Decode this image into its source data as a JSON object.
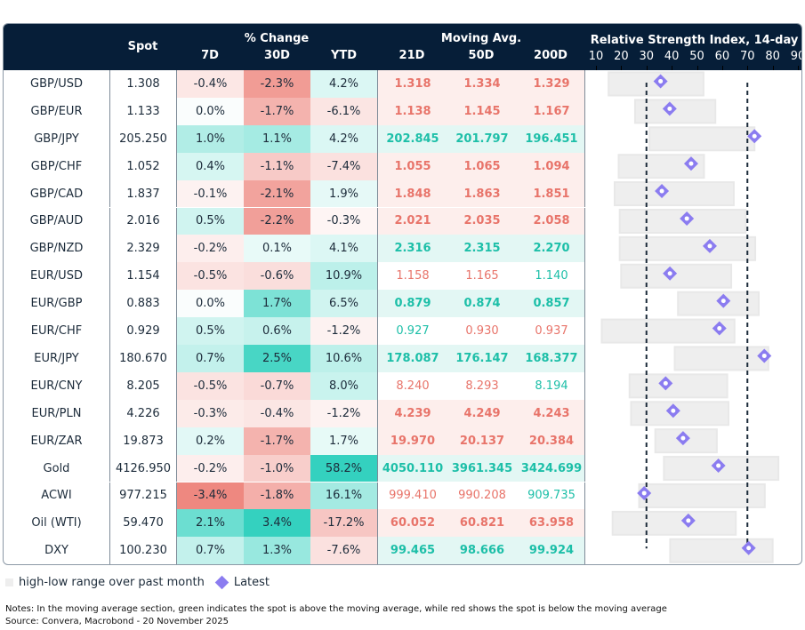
{
  "header": {
    "spot": "Spot",
    "pct_change": "% Change",
    "d7": "7D",
    "d30": "30D",
    "ytd": "YTD",
    "moving_avg": "Moving Avg.",
    "ma21": "21D",
    "ma50": "50D",
    "ma200": "200D",
    "rsi_title": "Relative Strength Index, 14-day"
  },
  "colors": {
    "header_bg": "#061e38",
    "green_text": "#1dbfa8",
    "red_text": "#e8746a",
    "green_bg": "#e3f7f4",
    "red_bg": "#fdeeec",
    "range_bar": "#eeeeee",
    "marker": "#8b7cf0",
    "threshold_line": "#1c2b3a"
  },
  "chart_data": {
    "type": "table",
    "title": "Relative Strength Index, 14-day",
    "rsi_axis": {
      "ticks": [
        10,
        20,
        30,
        40,
        50,
        60,
        70,
        80,
        90
      ],
      "range": [
        10,
        90
      ],
      "thresholds": [
        30,
        70
      ]
    },
    "rows": [
      {
        "name": "GBP/USD",
        "spot": "1.308",
        "d7": -0.4,
        "d30": -2.3,
        "ytd": 4.2,
        "ma": [
          {
            "v": "1.318",
            "c": "red"
          },
          {
            "v": "1.334",
            "c": "red"
          },
          {
            "v": "1.329",
            "c": "red"
          }
        ],
        "ma_bold": true,
        "ma_row": "red",
        "rsi": {
          "low": 15.0,
          "high": 52.6,
          "latest": 35.6
        }
      },
      {
        "name": "GBP/EUR",
        "spot": "1.133",
        "d7": 0.0,
        "d30": -1.7,
        "ytd": -6.1,
        "ma": [
          {
            "v": "1.138",
            "c": "red"
          },
          {
            "v": "1.145",
            "c": "red"
          },
          {
            "v": "1.167",
            "c": "red"
          }
        ],
        "ma_bold": true,
        "ma_row": "red",
        "rsi": {
          "low": 25.5,
          "high": 57.3,
          "latest": 39.2
        }
      },
      {
        "name": "GBP/JPY",
        "spot": "205.250",
        "d7": 1.0,
        "d30": 1.1,
        "ytd": 4.2,
        "ma": [
          {
            "v": "202.845",
            "c": "green"
          },
          {
            "v": "201.797",
            "c": "green"
          },
          {
            "v": "196.451",
            "c": "green"
          }
        ],
        "ma_bold": true,
        "ma_row": "green",
        "rsi": {
          "low": 31.2,
          "high": 72.8,
          "latest": 72.8
        }
      },
      {
        "name": "GBP/CHF",
        "spot": "1.052",
        "d7": 0.4,
        "d30": -1.1,
        "ytd": -7.4,
        "ma": [
          {
            "v": "1.055",
            "c": "red"
          },
          {
            "v": "1.065",
            "c": "red"
          },
          {
            "v": "1.094",
            "c": "red"
          }
        ],
        "ma_bold": true,
        "ma_row": "red",
        "rsi": {
          "low": 19.0,
          "high": 52.8,
          "latest": 47.7
        }
      },
      {
        "name": "GBP/CAD",
        "spot": "1.837",
        "d7": -0.1,
        "d30": -2.1,
        "ytd": 1.9,
        "ma": [
          {
            "v": "1.848",
            "c": "red"
          },
          {
            "v": "1.863",
            "c": "red"
          },
          {
            "v": "1.851",
            "c": "red"
          }
        ],
        "ma_bold": true,
        "ma_row": "red",
        "rsi": {
          "low": 17.4,
          "high": 64.6,
          "latest": 36.1
        }
      },
      {
        "name": "GBP/AUD",
        "spot": "2.016",
        "d7": 0.5,
        "d30": -2.2,
        "ytd": -0.3,
        "ma": [
          {
            "v": "2.021",
            "c": "red"
          },
          {
            "v": "2.035",
            "c": "red"
          },
          {
            "v": "2.058",
            "c": "red"
          }
        ],
        "ma_bold": true,
        "ma_row": "red",
        "rsi": {
          "low": 19.4,
          "high": 69.3,
          "latest": 46.0
        }
      },
      {
        "name": "GBP/NZD",
        "spot": "2.329",
        "d7": -0.2,
        "d30": 0.1,
        "ytd": 4.1,
        "ma": [
          {
            "v": "2.316",
            "c": "green"
          },
          {
            "v": "2.315",
            "c": "green"
          },
          {
            "v": "2.270",
            "c": "green"
          }
        ],
        "ma_bold": true,
        "ma_row": "green",
        "rsi": {
          "low": 19.4,
          "high": 73.1,
          "latest": 55.1
        }
      },
      {
        "name": "EUR/USD",
        "spot": "1.154",
        "d7": -0.5,
        "d30": -0.6,
        "ytd": 10.9,
        "ma": [
          {
            "v": "1.158",
            "c": "red"
          },
          {
            "v": "1.165",
            "c": "red"
          },
          {
            "v": "1.140",
            "c": "green"
          }
        ],
        "ma_bold": false,
        "ma_row": "none",
        "rsi": {
          "low": 20.0,
          "high": 63.6,
          "latest": 39.3
        }
      },
      {
        "name": "EUR/GBP",
        "spot": "0.883",
        "d7": 0.0,
        "d30": 1.7,
        "ytd": 6.5,
        "ma": [
          {
            "v": "0.879",
            "c": "green"
          },
          {
            "v": "0.874",
            "c": "green"
          },
          {
            "v": "0.857",
            "c": "green"
          }
        ],
        "ma_bold": true,
        "ma_row": "green",
        "rsi": {
          "low": 42.5,
          "high": 74.5,
          "latest": 60.5
        }
      },
      {
        "name": "EUR/CHF",
        "spot": "0.929",
        "d7": 0.5,
        "d30": 0.6,
        "ytd": -1.2,
        "ma": [
          {
            "v": "0.927",
            "c": "green"
          },
          {
            "v": "0.930",
            "c": "red"
          },
          {
            "v": "0.937",
            "c": "red"
          }
        ],
        "ma_bold": false,
        "ma_row": "none",
        "rsi": {
          "low": 12.3,
          "high": 64.9,
          "latest": 58.9
        }
      },
      {
        "name": "EUR/JPY",
        "spot": "180.670",
        "d7": 0.7,
        "d30": 2.5,
        "ytd": 10.6,
        "ma": [
          {
            "v": "178.087",
            "c": "green"
          },
          {
            "v": "176.147",
            "c": "green"
          },
          {
            "v": "168.377",
            "c": "green"
          }
        ],
        "ma_bold": true,
        "ma_row": "green",
        "rsi": {
          "low": 41.2,
          "high": 78.3,
          "latest": 76.7
        }
      },
      {
        "name": "EUR/CNY",
        "spot": "8.205",
        "d7": -0.5,
        "d30": -0.7,
        "ytd": 8.0,
        "ma": [
          {
            "v": "8.240",
            "c": "red"
          },
          {
            "v": "8.293",
            "c": "red"
          },
          {
            "v": "8.194",
            "c": "green"
          }
        ],
        "ma_bold": false,
        "ma_row": "none",
        "rsi": {
          "low": 23.3,
          "high": 62.0,
          "latest": 37.6
        }
      },
      {
        "name": "EUR/PLN",
        "spot": "4.226",
        "d7": -0.3,
        "d30": -0.4,
        "ytd": -1.2,
        "ma": [
          {
            "v": "4.239",
            "c": "red"
          },
          {
            "v": "4.249",
            "c": "red"
          },
          {
            "v": "4.243",
            "c": "red"
          }
        ],
        "ma_bold": true,
        "ma_row": "red",
        "rsi": {
          "low": 23.9,
          "high": 62.5,
          "latest": 40.6
        }
      },
      {
        "name": "EUR/ZAR",
        "spot": "19.873",
        "d7": 0.2,
        "d30": -1.7,
        "ytd": 1.7,
        "ma": [
          {
            "v": "19.970",
            "c": "red"
          },
          {
            "v": "20.137",
            "c": "red"
          },
          {
            "v": "20.384",
            "c": "red"
          }
        ],
        "ma_bold": true,
        "ma_row": "red",
        "rsi": {
          "low": 33.5,
          "high": 57.9,
          "latest": 44.5
        }
      },
      {
        "name": "Gold",
        "spot": "4126.950",
        "d7": -0.2,
        "d30": -1.0,
        "ytd": 58.2,
        "ma": [
          {
            "v": "4050.110",
            "c": "green"
          },
          {
            "v": "3961.345",
            "c": "green"
          },
          {
            "v": "3424.699",
            "c": "green"
          }
        ],
        "ma_bold": true,
        "ma_row": "green",
        "rsi": {
          "low": 36.9,
          "high": 82.3,
          "latest": 58.5
        }
      },
      {
        "name": "ACWI",
        "spot": "977.215",
        "d7": -3.4,
        "d30": -1.8,
        "ytd": 16.1,
        "ma": [
          {
            "v": "999.410",
            "c": "red"
          },
          {
            "v": "990.208",
            "c": "red"
          },
          {
            "v": "909.735",
            "c": "green"
          }
        ],
        "ma_bold": false,
        "ma_row": "none",
        "rsi": {
          "low": 27.1,
          "high": 76.9,
          "latest": 29.1
        }
      },
      {
        "name": "Oil (WTI)",
        "spot": "59.470",
        "d7": 2.1,
        "d30": 3.4,
        "ytd": -17.2,
        "ma": [
          {
            "v": "60.052",
            "c": "red"
          },
          {
            "v": "60.821",
            "c": "red"
          },
          {
            "v": "63.958",
            "c": "red"
          }
        ],
        "ma_bold": true,
        "ma_row": "red",
        "rsi": {
          "low": 16.6,
          "high": 65.4,
          "latest": 46.6
        }
      },
      {
        "name": "DXY",
        "spot": "100.230",
        "d7": 0.7,
        "d30": 1.3,
        "ytd": -7.6,
        "ma": [
          {
            "v": "99.465",
            "c": "green"
          },
          {
            "v": "98.666",
            "c": "green"
          },
          {
            "v": "99.924",
            "c": "green"
          }
        ],
        "ma_bold": true,
        "ma_row": "green",
        "rsi": {
          "low": 39.4,
          "high": 80.0,
          "latest": 70.5
        }
      }
    ],
    "legend": [
      {
        "label": "high-low range over past month",
        "symbol": "range-bar"
      },
      {
        "label": "Latest",
        "symbol": "diamond"
      }
    ]
  },
  "footer": {
    "legend_range": "high-low range over past month",
    "legend_latest": "Latest",
    "notes": "Notes: In the moving average section, green indicates the spot is above the moving average, while red shows the spot is below the moving average",
    "source": "Source: Convera, Macrobond - 20 November 2025"
  }
}
